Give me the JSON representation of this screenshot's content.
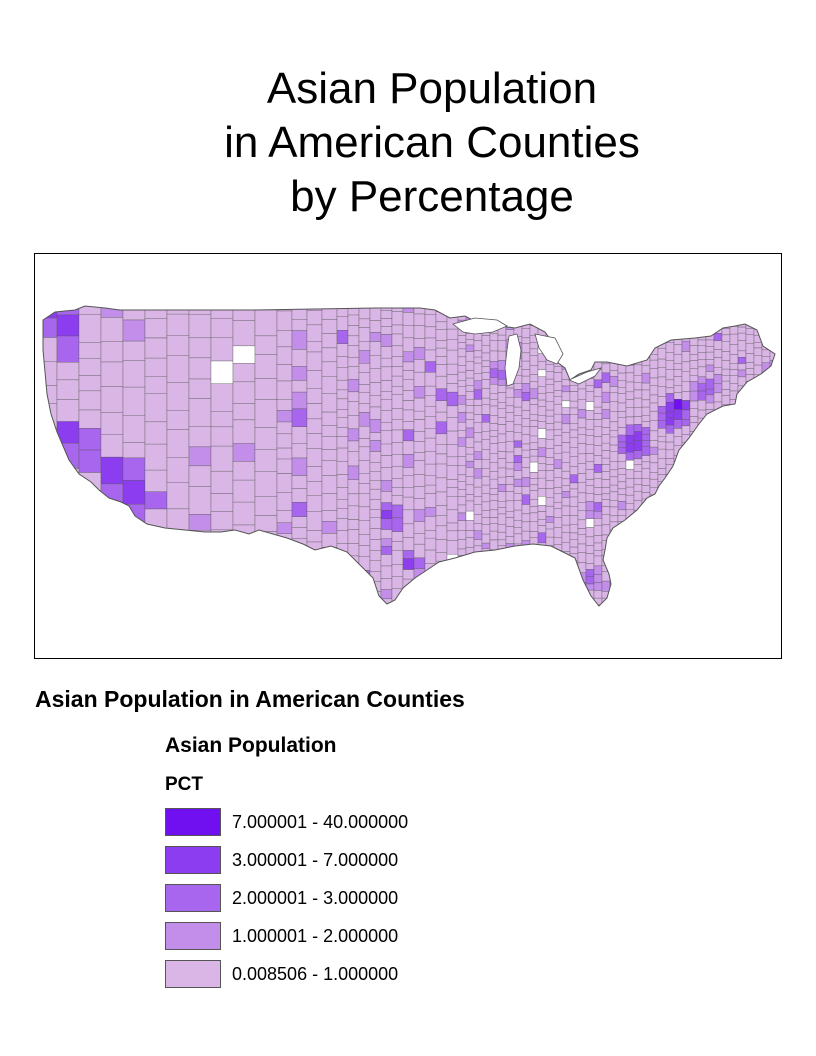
{
  "title": {
    "lines": [
      "Asian Population",
      "in American Counties",
      "by Percentage"
    ]
  },
  "map": {
    "region": "contiguous United States",
    "unit": "counties",
    "border_color": "#555555",
    "no_data_color": "#ffffff",
    "background_color": "#ffffff"
  },
  "legend": {
    "heading": "Asian Population in American Counties",
    "layer_name": "Asian Population",
    "field_name": "PCT",
    "classes": [
      {
        "label": "7.000001 - 40.000000",
        "min": 7.000001,
        "max": 40.0,
        "color": "#7010f0"
      },
      {
        "label": "3.000001 - 7.000000",
        "min": 3.000001,
        "max": 7.0,
        "color": "#8c3df0"
      },
      {
        "label": "2.000001 - 3.000000",
        "min": 2.000001,
        "max": 3.0,
        "color": "#a866ee"
      },
      {
        "label": "1.000001 - 2.000000",
        "min": 1.000001,
        "max": 2.0,
        "color": "#c28ee9"
      },
      {
        "label": "0.008506 - 1.000000",
        "min": 0.008506,
        "max": 1.0,
        "color": "#dab6e6"
      }
    ]
  }
}
